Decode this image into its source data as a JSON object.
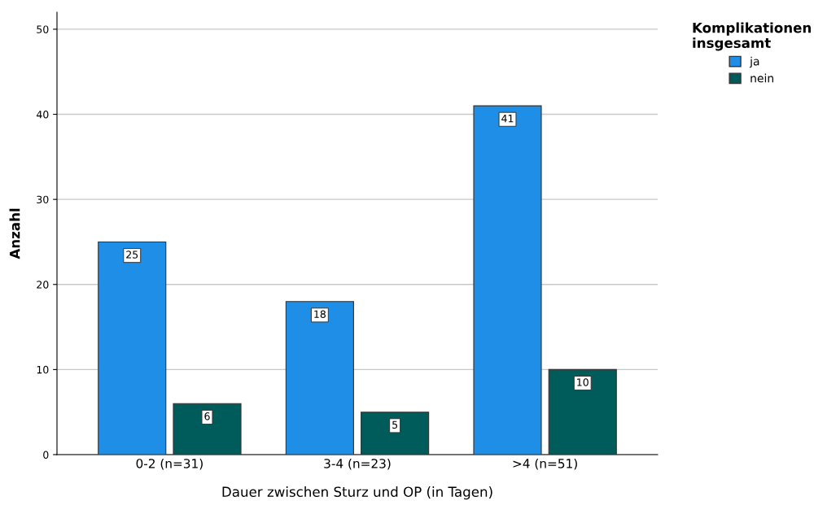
{
  "chart_data": {
    "type": "bar",
    "categories": [
      "0-2 (n=31)",
      "3-4 (n=23)",
      ">4 (n=51)"
    ],
    "series": [
      {
        "name": "ja",
        "color": "#1e8ee6",
        "values": [
          25,
          18,
          41
        ]
      },
      {
        "name": "nein",
        "color": "#005b5b",
        "values": [
          6,
          5,
          10
        ]
      }
    ],
    "xlabel": "Dauer zwischen Sturz und OP (in Tagen)",
    "ylabel": "Anzahl",
    "legend_title": "Komplikationen\ninsgesamt",
    "ylim": [
      0,
      52
    ],
    "yticks": [
      0,
      10,
      20,
      30,
      40,
      50
    ],
    "grid": "y",
    "legend": "top right",
    "data_labels": true
  }
}
